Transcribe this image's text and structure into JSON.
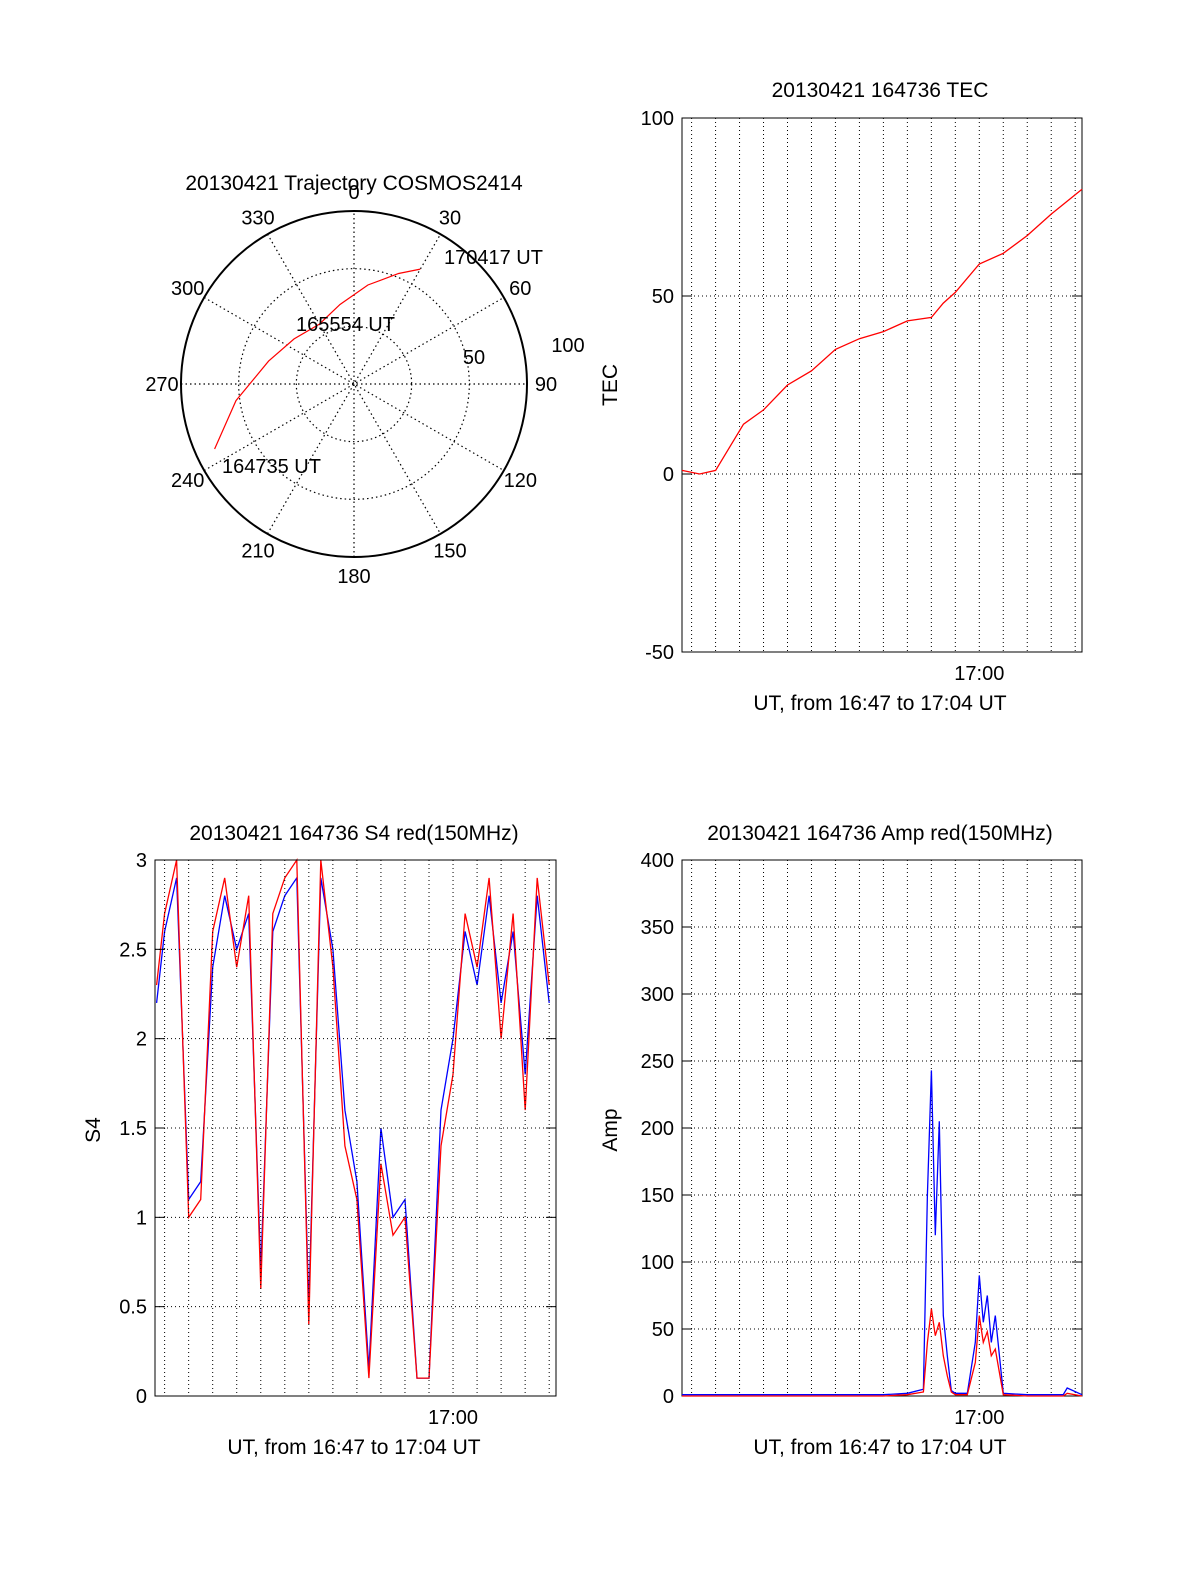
{
  "chart_data": [
    {
      "type": "polar-trajectory",
      "title": "20130421 Trajectory COSMOS2414",
      "azimuth_labels": [
        "0",
        "30",
        "60",
        "90",
        "120",
        "150",
        "180",
        "210",
        "240",
        "270",
        "300",
        "330"
      ],
      "radial_labels": [
        "50",
        "100"
      ],
      "series_color": "#ff0000",
      "trajectory": [
        {
          "azimuth": 245,
          "elevation": 10,
          "label": "164735 UT"
        },
        {
          "azimuth": 262,
          "elevation": 28
        },
        {
          "azimuth": 285,
          "elevation": 44
        },
        {
          "azimuth": 307,
          "elevation": 51,
          "label": "165554 UT"
        },
        {
          "azimuth": 330,
          "elevation": 54
        },
        {
          "azimuth": 350,
          "elevation": 48
        },
        {
          "azimuth": 8,
          "elevation": 38
        },
        {
          "azimuth": 22,
          "elevation": 28
        },
        {
          "azimuth": 30,
          "elevation": 21,
          "label": "170417 UT"
        }
      ]
    },
    {
      "type": "line",
      "title": "20130421 164736 TEC",
      "ylabel": "TEC",
      "xlabel": "UT, from 16:47 to 17:04 UT",
      "ylim": [
        -50,
        100
      ],
      "yticks": [
        "-50",
        "0",
        "50",
        "100"
      ],
      "xticks": [
        {
          "time": "17:00",
          "label": "17:00"
        }
      ],
      "xrange": [
        "16:47:36",
        "17:04:17"
      ],
      "grid": true,
      "series": [
        {
          "color": "#ff0000",
          "x": [
            "16:47:36",
            "16:48:20",
            "16:49:00",
            "16:50:10",
            "16:51:00",
            "16:52:00",
            "16:53:00",
            "16:54:00",
            "16:55:00",
            "16:56:00",
            "16:57:00",
            "16:58:00",
            "16:58:30",
            "16:59:00",
            "17:00:00",
            "17:01:00",
            "17:02:00",
            "17:03:00",
            "17:04:17"
          ],
          "values": [
            1,
            0,
            1,
            14,
            18,
            25,
            29,
            35,
            38,
            40,
            43,
            44,
            48,
            51,
            59,
            62,
            67,
            73,
            80
          ]
        }
      ]
    },
    {
      "type": "line",
      "title": "20130421 164736 S4 red(150MHz)",
      "ylabel": "S4",
      "xlabel": "UT, from 16:47 to 17:04 UT",
      "ylim": [
        0,
        3
      ],
      "yticks": [
        "0",
        "0.5",
        "1",
        "1.5",
        "2",
        "2.5",
        "3"
      ],
      "xticks": [
        {
          "time": "17:00",
          "label": "17:00"
        }
      ],
      "xrange": [
        "16:47:36",
        "17:04:17"
      ],
      "grid": true,
      "series": [
        {
          "color": "#0000ff",
          "x": [
            "16:47:40",
            "16:48:00",
            "16:48:30",
            "16:49:00",
            "16:49:30",
            "16:50:00",
            "16:50:30",
            "16:51:00",
            "16:51:30",
            "16:52:00",
            "16:52:30",
            "16:53:00",
            "16:53:30",
            "16:54:00",
            "16:54:30",
            "16:55:00",
            "16:55:30",
            "16:56:00",
            "16:56:30",
            "16:57:00",
            "16:57:30",
            "16:58:00",
            "16:58:30",
            "16:59:00",
            "16:59:30",
            "17:00:00",
            "17:00:30",
            "17:01:00",
            "17:01:30",
            "17:02:00",
            "17:02:30",
            "17:03:00",
            "17:03:30",
            "17:04:00"
          ],
          "values": [
            2.2,
            2.6,
            2.9,
            1.1,
            1.2,
            2.4,
            2.8,
            2.5,
            2.7,
            0.7,
            2.6,
            2.8,
            2.9,
            0.5,
            2.9,
            2.5,
            1.6,
            1.2,
            0.15,
            1.5,
            1.0,
            1.1,
            0.1,
            0.1,
            1.6,
            2.0,
            2.6,
            2.3,
            2.8,
            2.2,
            2.6,
            1.8,
            2.8,
            2.2
          ]
        },
        {
          "color": "#ff0000",
          "x": [
            "16:47:40",
            "16:48:00",
            "16:48:30",
            "16:49:00",
            "16:49:30",
            "16:50:00",
            "16:50:30",
            "16:51:00",
            "16:51:30",
            "16:52:00",
            "16:52:30",
            "16:53:00",
            "16:53:30",
            "16:54:00",
            "16:54:30",
            "16:55:00",
            "16:55:30",
            "16:56:00",
            "16:56:30",
            "16:57:00",
            "16:57:30",
            "16:58:00",
            "16:58:30",
            "16:59:00",
            "16:59:30",
            "17:00:00",
            "17:00:30",
            "17:01:00",
            "17:01:30",
            "17:02:00",
            "17:02:30",
            "17:03:00",
            "17:03:30",
            "17:04:00"
          ],
          "values": [
            2.3,
            2.7,
            3.0,
            1.0,
            1.1,
            2.6,
            2.9,
            2.4,
            2.8,
            0.6,
            2.7,
            2.9,
            3.0,
            0.4,
            3.0,
            2.4,
            1.4,
            1.1,
            0.1,
            1.3,
            0.9,
            1.0,
            0.1,
            0.1,
            1.4,
            1.8,
            2.7,
            2.4,
            2.9,
            2.0,
            2.7,
            1.6,
            2.9,
            2.3
          ]
        }
      ]
    },
    {
      "type": "line",
      "title": "20130421 164736 Amp red(150MHz)",
      "ylabel": "Amp",
      "xlabel": "UT, from 16:47 to 17:04 UT",
      "ylim": [
        0,
        400
      ],
      "yticks": [
        "0",
        "50",
        "100",
        "150",
        "200",
        "250",
        "300",
        "350",
        "400"
      ],
      "xticks": [
        {
          "time": "17:00",
          "label": "17:00"
        }
      ],
      "xrange": [
        "16:47:36",
        "17:04:17"
      ],
      "grid": true,
      "series": [
        {
          "color": "#0000ff",
          "x": [
            "16:47:36",
            "16:52:00",
            "16:56:00",
            "16:57:00",
            "16:57:40",
            "16:57:50",
            "16:58:00",
            "16:58:10",
            "16:58:20",
            "16:58:30",
            "16:58:40",
            "16:58:50",
            "16:59:00",
            "16:59:30",
            "16:59:50",
            "17:00:00",
            "17:00:10",
            "17:00:20",
            "17:00:30",
            "17:00:40",
            "17:01:00",
            "17:02:00",
            "17:03:00",
            "17:03:30",
            "17:03:40",
            "17:04:17"
          ],
          "values": [
            1,
            1,
            1,
            2,
            5,
            150,
            243,
            120,
            205,
            60,
            30,
            4,
            2,
            2,
            40,
            90,
            55,
            75,
            40,
            60,
            2,
            1,
            1,
            1,
            6,
            1
          ]
        },
        {
          "color": "#ff0000",
          "x": [
            "16:47:36",
            "16:52:00",
            "16:56:00",
            "16:57:00",
            "16:57:40",
            "16:57:50",
            "16:58:00",
            "16:58:10",
            "16:58:20",
            "16:58:30",
            "16:58:40",
            "16:58:50",
            "16:59:00",
            "16:59:30",
            "16:59:50",
            "17:00:00",
            "17:00:10",
            "17:00:20",
            "17:00:30",
            "17:00:40",
            "17:01:00",
            "17:02:00",
            "17:03:00",
            "17:03:30",
            "17:03:40",
            "17:04:17"
          ],
          "values": [
            0,
            0,
            0,
            1,
            3,
            40,
            65,
            45,
            55,
            30,
            15,
            3,
            1,
            1,
            25,
            60,
            40,
            48,
            30,
            35,
            1,
            0,
            0,
            0,
            2,
            0
          ]
        }
      ]
    }
  ]
}
